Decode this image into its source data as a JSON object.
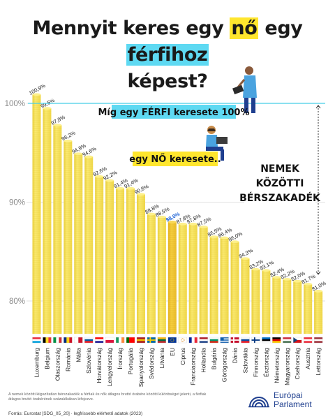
{
  "title": {
    "pre": "Mennyit keres egy ",
    "no": "nő",
    "mid": " egy ",
    "ffi": "férfihoz",
    "post": "képest?"
  },
  "callouts": {
    "male": "Míg egy FÉRFI keresete 100%",
    "female": "egy NŐ keresete..",
    "gap_line1": "NEMEK",
    "gap_line2": "KÖZÖTTI",
    "gap_line3": "BÉRSZAKADÉK"
  },
  "footnote": "A nemek közötti kiigazítatlan bérszakadék a férfiak és nők átlagos bruttó órabére közötti különbséget jelenti, a férfiak átlagos bruttó órabérének százalékában kifejezve.",
  "source": "Forrás: Eurostat [SDG_05_20] · legfrissebb elérhető adatok (2023)",
  "logo": {
    "line1": "Európai",
    "line2": "Parlament"
  },
  "chart_data": {
    "type": "bar",
    "y_ticks": [
      "80%",
      "90%",
      "100%"
    ],
    "y_tick_values": [
      80,
      90,
      100
    ],
    "ylim": [
      77,
      103
    ],
    "reference_line": 100,
    "highlight_category": "EU",
    "categories": [
      "Luxemburg",
      "Belgium",
      "Olaszország",
      "Románia",
      "Málta",
      "Szlovénia",
      "Horvátország",
      "Lengyelország",
      "Írország",
      "Portugália",
      "Spanyolország",
      "Svédország",
      "Litvánia",
      "EU",
      "Ciprus",
      "Franciaország",
      "Hollandia",
      "Bulgária",
      "Görögország",
      "Dánia",
      "Szlovákia",
      "Finnország",
      "Észtország",
      "Németország",
      "Magyarország",
      "Csehország",
      "Ausztria",
      "Lettország"
    ],
    "values": [
      100.9,
      99.5,
      97.8,
      96.2,
      94.9,
      94.6,
      92.6,
      92.2,
      91.4,
      91.4,
      90.8,
      88.8,
      88.5,
      88.0,
      87.8,
      87.8,
      87.5,
      86.5,
      86.4,
      86.0,
      84.3,
      83.2,
      83.1,
      82.4,
      82.2,
      82.0,
      81.7,
      81.0
    ],
    "value_labels": [
      "100,9%",
      "99,5%",
      "97,8%",
      "96,2%",
      "94,9%",
      "94,6%",
      "92,6%",
      "92,2%",
      "91,4%",
      "91,4%",
      "90,8%",
      "88,8%",
      "88,5%",
      "88,0%",
      "87,8%",
      "87,8%",
      "87,5%",
      "86,5%",
      "86,4%",
      "86,0%",
      "84,3%",
      "83,2%",
      "83,1%",
      "82,4%",
      "82,2%",
      "82,0%",
      "81,7%",
      "81,0%"
    ],
    "colors": {
      "bar": "#f7e25e",
      "bar_dark": "#e9cf3c",
      "eu_bar": "#f3c52f",
      "eu_label": "#1f63d6",
      "reference_line": "#45cde6",
      "gridline": "#d8d8d8",
      "highlight_yellow": "#ffe62e",
      "highlight_cyan": "#5ed9f2"
    }
  }
}
